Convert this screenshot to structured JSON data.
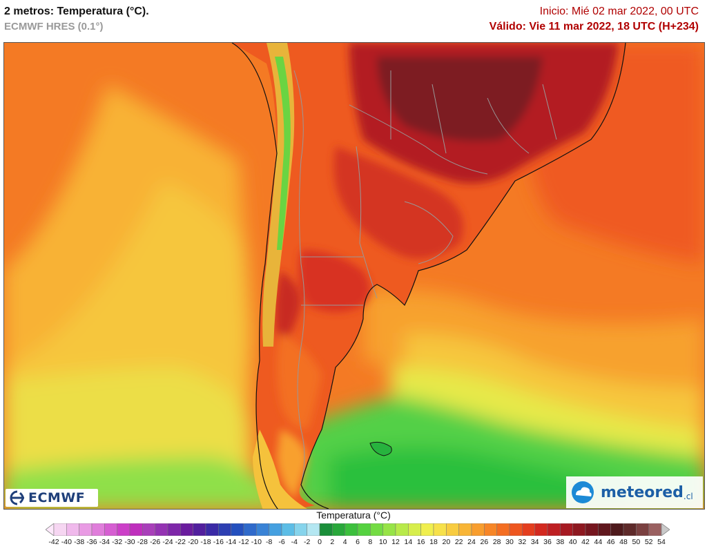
{
  "header": {
    "title": "2 metros: Temperatura (°C).",
    "model": "ECMWF HRES (0.1°)",
    "init": "Inicio: Mié 02 mar 2022, 00 UTC",
    "valid": "Válido: Vie 11 mar 2022, 18 UTC (H+234)"
  },
  "logos": {
    "ecmwf": "ECMWF",
    "meteored": "meteored",
    "meteored_suffix": ".cl"
  },
  "legend": {
    "title": "Temperatura (°C)",
    "ticks": [
      "-42",
      "-40",
      "-38",
      "-36",
      "-34",
      "-32",
      "-30",
      "-28",
      "-26",
      "-24",
      "-22",
      "-20",
      "-18",
      "-16",
      "-14",
      "-12",
      "-10",
      "-8",
      "-6",
      "-4",
      "-2",
      "0",
      "2",
      "4",
      "6",
      "8",
      "10",
      "12",
      "14",
      "16",
      "18",
      "20",
      "22",
      "24",
      "26",
      "28",
      "30",
      "32",
      "34",
      "36",
      "38",
      "40",
      "42",
      "44",
      "46",
      "48",
      "50",
      "52",
      "54"
    ],
    "colors": [
      "#f6d6f2",
      "#f0b9ec",
      "#e99be4",
      "#e07ddb",
      "#d65ed2",
      "#cc40c8",
      "#bf2fbd",
      "#a93fba",
      "#9433b3",
      "#7e27a9",
      "#6a1c9e",
      "#521f9e",
      "#3a2aa6",
      "#2d3fb2",
      "#2450be",
      "#2f6acb",
      "#3983d6",
      "#45a0e0",
      "#5cbde6",
      "#86d4ec",
      "#b4e7f2",
      "#1b8f3a",
      "#29a83b",
      "#3cc03d",
      "#55d240",
      "#74dc44",
      "#97e447",
      "#b8ea4a",
      "#d7ee4c",
      "#f0ef4e",
      "#f7e14a",
      "#f8cc40",
      "#f8b536",
      "#f89e2e",
      "#f78627",
      "#f46e22",
      "#ee561f",
      "#e43e1e",
      "#d3291f",
      "#be1f22",
      "#a61a22",
      "#8e1820",
      "#76161f",
      "#60171d",
      "#4e1a1c",
      "#5e2a2a",
      "#7a4040",
      "#9a6060"
    ]
  },
  "map": {
    "region": "South America (southern cone) and surrounding oceans",
    "colors": {
      "hot": "#c1271f",
      "very_hot": "#8c1a1f",
      "warm": "#ef5a20",
      "mild": "#f79a2c",
      "cool": "#f6c83e",
      "cold": "#e8ec4c",
      "sea_cold": "#4fd146",
      "sea_colder": "#1fbf3c",
      "border": "#999999"
    }
  }
}
